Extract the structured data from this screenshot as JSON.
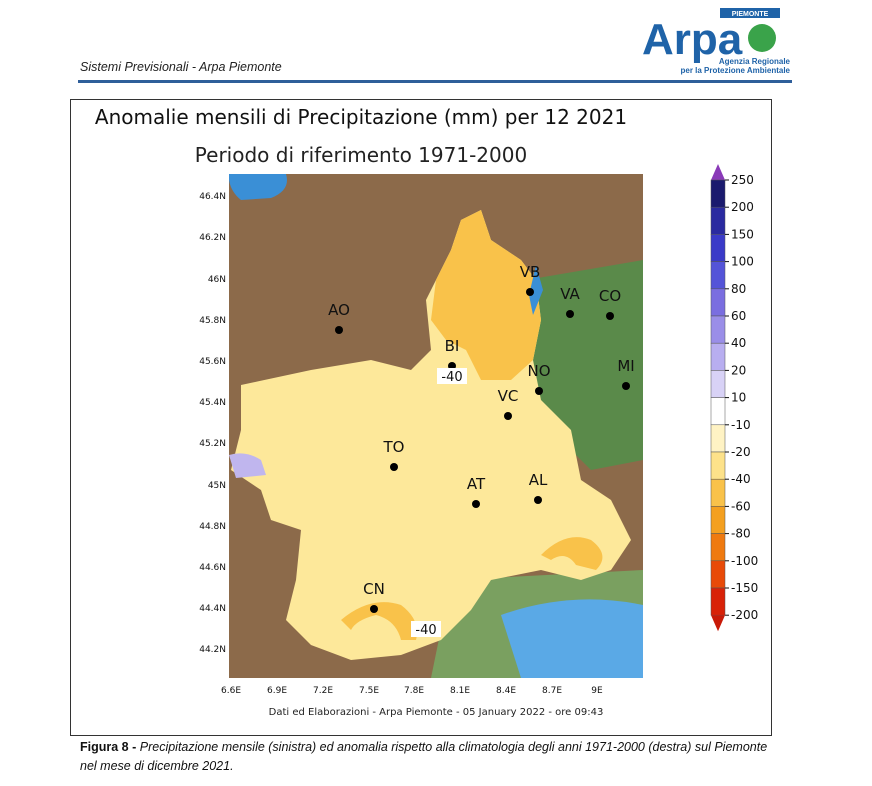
{
  "header": {
    "title": "Sistemi Previsionali - Arpa Piemonte"
  },
  "logo": {
    "top_label": "PIEMONTE",
    "wordmark": "Arpa",
    "line1": "Agenzia Regionale",
    "line2": "per la Protezione Ambientale",
    "color": "#1f63a8",
    "accent": "#3aa34a"
  },
  "figure": {
    "title": "Anomalie mensili di Precipitazione (mm) per 12 2021",
    "subtitle": "Periodo di riferimento 1971-2000",
    "footer": "Dati ed Elaborazioni - Arpa Piemonte - 05 January 2022 - ore 09:43",
    "lat_ticks": [
      "46.4N",
      "46.2N",
      "46N",
      "45.8N",
      "45.6N",
      "45.4N",
      "45.2N",
      "45N",
      "44.8N",
      "44.6N",
      "44.4N",
      "44.2N"
    ],
    "lon_ticks": [
      "6.6E",
      "6.9E",
      "7.2E",
      "7.5E",
      "7.8E",
      "8.1E",
      "8.4E",
      "8.7E",
      "9E"
    ],
    "cities": [
      {
        "name": "VB"
      },
      {
        "name": "VA"
      },
      {
        "name": "CO"
      },
      {
        "name": "AO"
      },
      {
        "name": "BI"
      },
      {
        "name": "NO"
      },
      {
        "name": "MI"
      },
      {
        "name": "VC"
      },
      {
        "name": "TO"
      },
      {
        "name": "AT"
      },
      {
        "name": "AL"
      },
      {
        "name": "CN"
      }
    ],
    "contour_labels": [
      "-40",
      "-40"
    ],
    "colorbar": {
      "labels": [
        "250",
        "200",
        "150",
        "100",
        "80",
        "60",
        "40",
        "20",
        "10",
        "-10",
        "-20",
        "-40",
        "-60",
        "-80",
        "-100",
        "-150",
        "-200"
      ],
      "colors": [
        "#1a1a6e",
        "#2a2aa0",
        "#3a3ac8",
        "#5454d8",
        "#7a6ee0",
        "#9a8ee8",
        "#b8aef0",
        "#d8d2f6",
        "#ffffff",
        "#fff3c4",
        "#fde28a",
        "#f9c24a",
        "#f4a020",
        "#ef7a10",
        "#e84a08",
        "#d82208"
      ]
    }
  },
  "caption": {
    "label": "Figura 8 -",
    "text": " Precipitazione mensile (sinistra) ed anomalia rispetto alla climatologia degli anni 1971-2000 (destra) sul Piemonte nel mese di dicembre 2021."
  }
}
